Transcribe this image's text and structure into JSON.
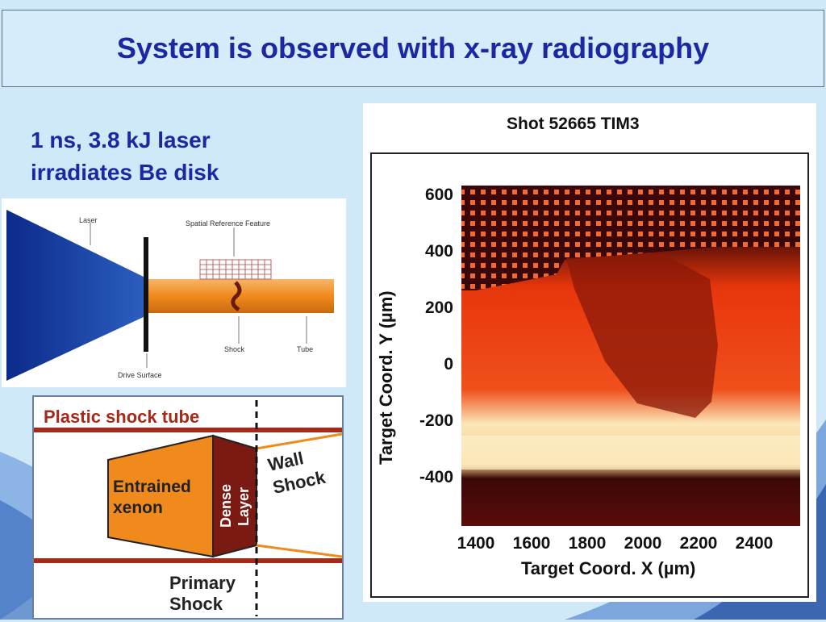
{
  "slide": {
    "title": "System is observed with x-ray radiography",
    "bullet_line1": "1 ns, 3.8 kJ laser",
    "bullet_line2": "irradiates Be disk"
  },
  "laser_diagram": {
    "laser_label": "Laser",
    "reference_label": "Spatial Reference Feature",
    "shock_label": "Shock",
    "tube_label": "Tube",
    "drive_surface_label": "Drive Surface"
  },
  "shock_tube_diagram": {
    "tube_label": "Plastic shock tube",
    "xenon_line1": "Entrained",
    "xenon_line2": "xenon",
    "dense_line1": "Dense",
    "dense_line2": "Layer",
    "wall_line1": "Wall",
    "wall_line2": "Shock",
    "primary_line1": "Primary",
    "primary_line2": "Shock"
  },
  "radiograph": {
    "title": "Shot 52665 TIM3",
    "xlabel": "Target Coord. X (µm)",
    "ylabel": "Target Coord. Y (µm)",
    "x_ticks": [
      "1400",
      "1600",
      "1800",
      "2000",
      "2200",
      "2400"
    ],
    "y_ticks": [
      "600",
      "400",
      "200",
      "0",
      "-200",
      "-400"
    ],
    "colors": {
      "dark": "#3a0808",
      "mid": "#e8360c",
      "bright": "#fbe6b8",
      "shadow": "#8a1808"
    }
  }
}
